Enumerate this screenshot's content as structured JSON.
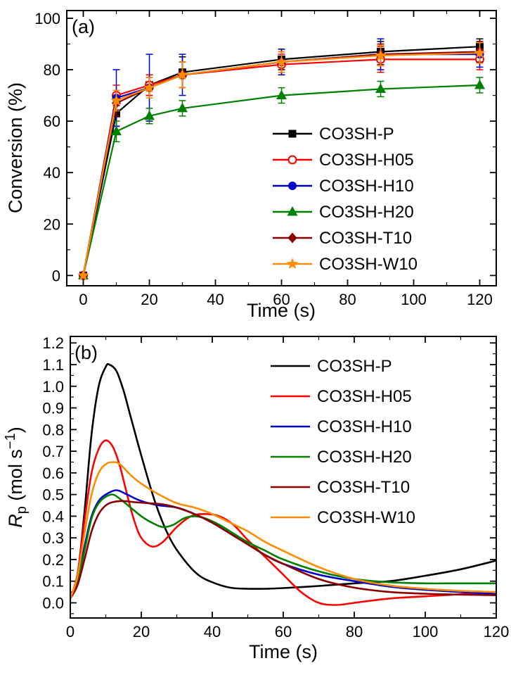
{
  "figure": {
    "background": "#ffffff"
  },
  "chart_data": [
    {
      "id": "a",
      "type": "line-scatter",
      "panel_label": "(a)",
      "xlabel": "Time (s)",
      "ylabel": "Conversion (%)",
      "xlim": [
        -5,
        125
      ],
      "ylim": [
        -4,
        103
      ],
      "xticks": [
        0,
        20,
        40,
        60,
        80,
        100,
        120
      ],
      "yticks": [
        0,
        20,
        40,
        60,
        80,
        100
      ],
      "x_minor_step": 10,
      "y_minor_step": 10,
      "tick_decimals": {
        "x": 0,
        "y": 0
      },
      "legend_position": "inside-right",
      "x": [
        0,
        10,
        20,
        30,
        60,
        90,
        120
      ],
      "series": [
        {
          "name": "CO3SH-P",
          "color": "#000000",
          "marker": "square",
          "values": [
            0,
            63,
            74,
            79,
            84,
            87,
            89
          ],
          "errors": [
            0,
            5,
            4,
            6,
            4,
            4,
            3
          ]
        },
        {
          "name": "CO3SH-H05",
          "color": "#ff0000",
          "marker": "circle-open",
          "values": [
            0,
            70,
            74,
            78,
            82,
            84,
            84
          ],
          "errors": [
            0,
            4,
            4,
            5,
            4,
            5,
            4
          ]
        },
        {
          "name": "CO3SH-H10",
          "color": "#0000cd",
          "marker": "circle",
          "values": [
            0,
            69,
            73,
            78,
            83,
            86,
            86
          ],
          "errors": [
            0,
            11,
            13,
            8,
            5,
            6,
            5
          ]
        },
        {
          "name": "CO3SH-H20",
          "color": "#008000",
          "marker": "triangle",
          "values": [
            0,
            56,
            62,
            65,
            70,
            72.5,
            74
          ],
          "errors": [
            0,
            4,
            3,
            3,
            3,
            3,
            3
          ]
        },
        {
          "name": "CO3SH-T10",
          "color": "#8b0000",
          "marker": "diamond",
          "values": [
            0,
            67,
            73,
            78,
            83,
            86,
            87
          ],
          "errors": [
            0,
            5,
            4,
            5,
            4,
            4,
            4
          ]
        },
        {
          "name": "CO3SH-W10",
          "color": "#ff8c00",
          "marker": "star",
          "values": [
            0,
            68,
            73,
            78,
            83,
            85.5,
            86.5
          ],
          "errors": [
            0,
            4,
            4,
            5,
            4,
            4,
            4
          ]
        }
      ]
    },
    {
      "id": "b",
      "type": "smooth-line",
      "panel_label": "(b)",
      "xlabel": "Time (s)",
      "ylabel_parts": {
        "italic": "R",
        "sub": "p",
        "mid": " (mol s",
        "sup": "−1",
        "close": ")"
      },
      "xlim": [
        0,
        120
      ],
      "ylim": [
        -0.07,
        1.23
      ],
      "xticks": [
        0,
        20,
        40,
        60,
        80,
        100,
        120
      ],
      "yticks": [
        0,
        0.1,
        0.2,
        0.3,
        0.4,
        0.5,
        0.6,
        0.7,
        0.8,
        0.9,
        1.0,
        1.1,
        1.2
      ],
      "x_minor_step": 10,
      "y_minor_step": 0.05,
      "tick_decimals": {
        "x": 0,
        "y": 1
      },
      "legend_position": "inside-right",
      "series": [
        {
          "name": "CO3SH-P",
          "color": "#000000",
          "x": [
            0,
            2,
            4,
            6,
            8,
            10,
            11,
            13,
            15,
            17,
            20,
            24,
            28,
            32,
            36,
            40,
            45,
            50,
            55,
            60,
            70,
            80,
            90,
            100,
            110,
            120
          ],
          "y": [
            0.02,
            0.12,
            0.42,
            0.78,
            1.0,
            1.09,
            1.1,
            1.07,
            0.98,
            0.86,
            0.68,
            0.46,
            0.3,
            0.2,
            0.13,
            0.095,
            0.07,
            0.065,
            0.065,
            0.068,
            0.078,
            0.09,
            0.1,
            0.125,
            0.155,
            0.195
          ]
        },
        {
          "name": "CO3SH-H05",
          "color": "#ff0000",
          "x": [
            0,
            2,
            4,
            6,
            8,
            10,
            12,
            14,
            16,
            18,
            20,
            23,
            26,
            30,
            34,
            38,
            42,
            46,
            50,
            55,
            60,
            65,
            70,
            75,
            80,
            90,
            100,
            110,
            120
          ],
          "y": [
            0.02,
            0.13,
            0.38,
            0.6,
            0.71,
            0.75,
            0.72,
            0.63,
            0.5,
            0.38,
            0.3,
            0.26,
            0.28,
            0.35,
            0.4,
            0.41,
            0.4,
            0.36,
            0.29,
            0.21,
            0.13,
            0.05,
            0.0,
            -0.01,
            0.0,
            0.02,
            0.03,
            0.04,
            0.05
          ]
        },
        {
          "name": "CO3SH-H10",
          "color": "#0000cd",
          "x": [
            0,
            2,
            4,
            6,
            8,
            10,
            13,
            16,
            20,
            25,
            30,
            35,
            40,
            45,
            50,
            55,
            60,
            70,
            80,
            90,
            100,
            110,
            120
          ],
          "y": [
            0.02,
            0.1,
            0.26,
            0.4,
            0.47,
            0.5,
            0.52,
            0.5,
            0.47,
            0.45,
            0.44,
            0.41,
            0.37,
            0.32,
            0.27,
            0.22,
            0.18,
            0.13,
            0.1,
            0.075,
            0.06,
            0.05,
            0.04
          ]
        },
        {
          "name": "CO3SH-H20",
          "color": "#008000",
          "x": [
            0,
            2,
            4,
            6,
            8,
            10,
            12,
            14,
            17,
            20,
            23,
            26,
            29,
            32,
            35,
            38,
            42,
            46,
            50,
            55,
            60,
            70,
            80,
            90,
            100,
            110,
            120
          ],
          "y": [
            0.02,
            0.09,
            0.24,
            0.39,
            0.46,
            0.49,
            0.5,
            0.48,
            0.44,
            0.4,
            0.37,
            0.35,
            0.36,
            0.39,
            0.4,
            0.39,
            0.36,
            0.32,
            0.28,
            0.24,
            0.2,
            0.145,
            0.11,
            0.095,
            0.09,
            0.09,
            0.09
          ]
        },
        {
          "name": "CO3SH-T10",
          "color": "#8b0000",
          "x": [
            0,
            2,
            4,
            6,
            8,
            10,
            12,
            15,
            18,
            22,
            26,
            30,
            35,
            40,
            45,
            50,
            55,
            60,
            70,
            80,
            90,
            100,
            110,
            120
          ],
          "y": [
            0.02,
            0.08,
            0.2,
            0.33,
            0.41,
            0.45,
            0.465,
            0.47,
            0.465,
            0.46,
            0.455,
            0.44,
            0.41,
            0.37,
            0.32,
            0.27,
            0.22,
            0.18,
            0.11,
            0.07,
            0.05,
            0.042,
            0.038,
            0.035
          ]
        },
        {
          "name": "CO3SH-W10",
          "color": "#ff8c00",
          "x": [
            0,
            2,
            4,
            6,
            8,
            10,
            12,
            14,
            17,
            20,
            25,
            30,
            35,
            40,
            45,
            50,
            55,
            60,
            70,
            80,
            90,
            100,
            110,
            120
          ],
          "y": [
            0.02,
            0.12,
            0.32,
            0.5,
            0.6,
            0.64,
            0.65,
            0.64,
            0.59,
            0.55,
            0.5,
            0.46,
            0.44,
            0.41,
            0.37,
            0.33,
            0.28,
            0.24,
            0.165,
            0.11,
            0.08,
            0.065,
            0.055,
            0.05
          ]
        }
      ]
    }
  ]
}
